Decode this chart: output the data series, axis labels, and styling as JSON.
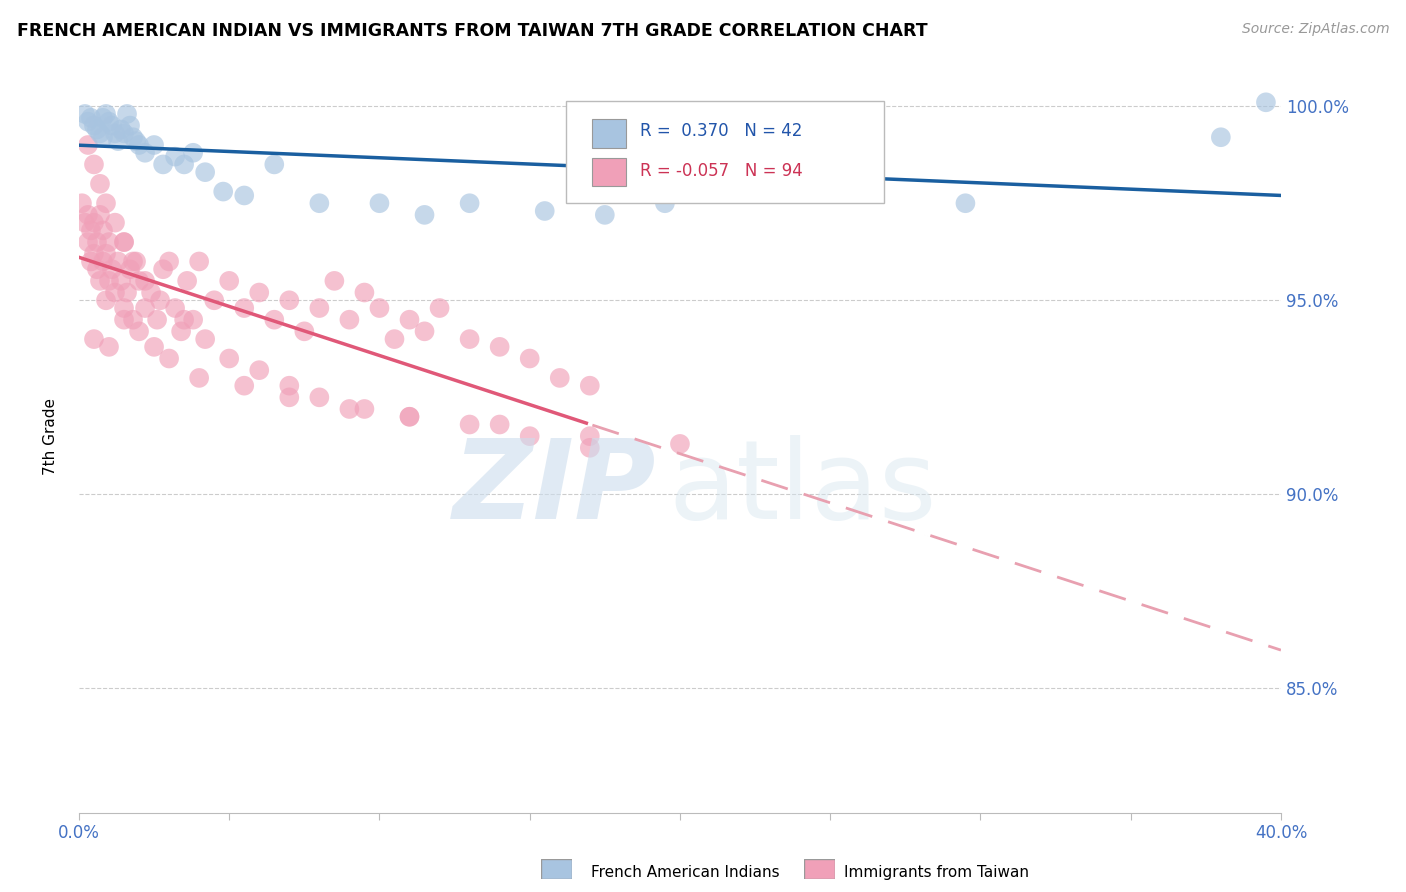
{
  "title": "FRENCH AMERICAN INDIAN VS IMMIGRANTS FROM TAIWAN 7TH GRADE CORRELATION CHART",
  "source": "Source: ZipAtlas.com",
  "ylabel": "7th Grade",
  "ytick_values": [
    0.85,
    0.9,
    0.95,
    1.0
  ],
  "xlim": [
    0.0,
    0.4
  ],
  "ylim": [
    0.818,
    1.012
  ],
  "legend_blue_label": "French American Indians",
  "legend_pink_label": "Immigrants from Taiwan",
  "r_blue": 0.37,
  "n_blue": 42,
  "r_pink": -0.057,
  "n_pink": 94,
  "blue_color": "#a8c4e0",
  "pink_color": "#f0a0b8",
  "blue_line_color": "#1a5fa0",
  "pink_line_color": "#e05878",
  "pink_dash_color": "#e8a0b0"
}
